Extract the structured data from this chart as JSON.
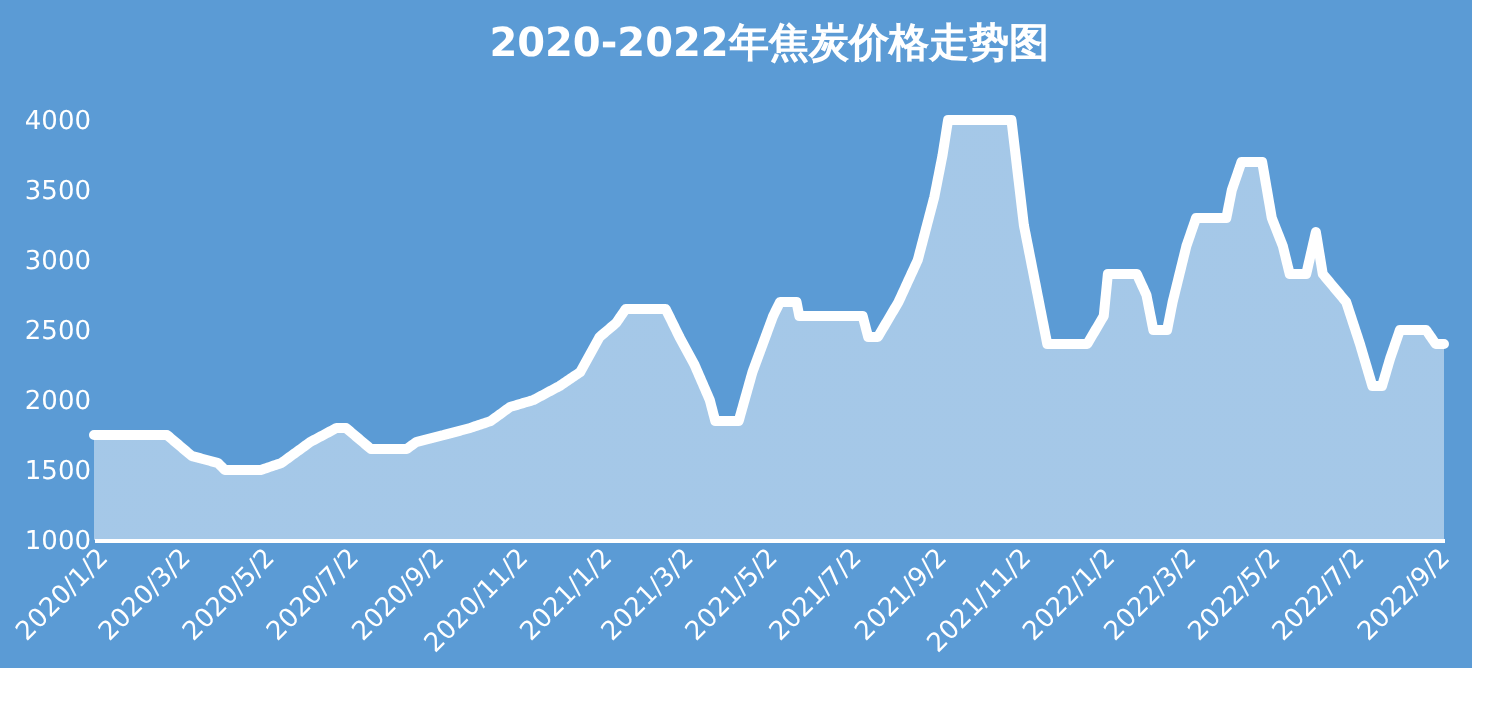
{
  "chart_data": {
    "type": "area",
    "title": "2020-2022年焦炭价格走势图",
    "x": [
      "2020-01-02",
      "2020-02-24",
      "2020-03-13",
      "2020-04-01",
      "2020-04-06",
      "2020-05-02",
      "2020-05-17",
      "2020-06-07",
      "2020-06-26",
      "2020-07-03",
      "2020-07-21",
      "2020-08-16",
      "2020-08-23",
      "2020-09-12",
      "2020-10-01",
      "2020-10-16",
      "2020-10-30",
      "2020-11-16",
      "2020-12-05",
      "2020-12-20",
      "2021-01-03",
      "2021-01-15",
      "2021-01-22",
      "2021-02-20",
      "2021-03-02",
      "2021-03-13",
      "2021-03-24",
      "2021-03-28",
      "2021-04-14",
      "2021-04-24",
      "2021-05-09",
      "2021-05-14",
      "2021-05-26",
      "2021-05-28",
      "2021-07-13",
      "2021-07-17",
      "2021-07-24",
      "2021-08-08",
      "2021-08-22",
      "2021-09-03",
      "2021-09-09",
      "2021-09-13",
      "2021-10-29",
      "2021-11-07",
      "2021-11-24",
      "2021-12-23",
      "2022-01-04",
      "2022-01-07",
      "2022-01-28",
      "2022-02-04",
      "2022-02-09",
      "2022-02-19",
      "2022-02-23",
      "2022-03-05",
      "2022-03-12",
      "2022-04-03",
      "2022-04-07",
      "2022-04-14",
      "2022-04-29",
      "2022-05-06",
      "2022-05-14",
      "2022-05-19",
      "2022-05-31",
      "2022-06-07",
      "2022-06-12",
      "2022-06-29",
      "2022-07-09",
      "2022-07-18",
      "2022-07-25",
      "2022-07-31",
      "2022-08-07",
      "2022-08-26",
      "2022-09-02",
      "2022-09-08"
    ],
    "series": [
      {
        "color": "#ffffff",
        "values": [
          1750,
          1750,
          1600,
          1550,
          1500,
          1500,
          1550,
          1700,
          1800,
          1800,
          1650,
          1650,
          1700,
          1750,
          1800,
          1850,
          1950,
          2000,
          2100,
          2200,
          2450,
          2550,
          2650,
          2650,
          2450,
          2250,
          2000,
          1850,
          1850,
          2200,
          2600,
          2700,
          2700,
          2600,
          2600,
          2450,
          2450,
          2700,
          3000,
          3450,
          3750,
          4000,
          4000,
          3250,
          2400,
          2400,
          2600,
          2900,
          2900,
          2750,
          2500,
          2500,
          2700,
          3100,
          3300,
          3300,
          3500,
          3700,
          3700,
          3300,
          3100,
          2900,
          2900,
          3200,
          2900,
          2700,
          2400,
          2100,
          2100,
          2300,
          2500,
          2500,
          2400,
          2400
        ]
      }
    ],
    "xlim": [
      "2020-01-02",
      "2022-09-08"
    ],
    "xticks": [
      {
        "value": "2020-01-02",
        "label": "2020/1/2"
      },
      {
        "value": "2020-03-02",
        "label": "2020/3/2"
      },
      {
        "value": "2020-05-02",
        "label": "2020/5/2"
      },
      {
        "value": "2020-07-02",
        "label": "2020/7/2"
      },
      {
        "value": "2020-09-02",
        "label": "2020/9/2"
      },
      {
        "value": "2020-11-02",
        "label": "2020/11/2"
      },
      {
        "value": "2021-01-02",
        "label": "2021/1/2"
      },
      {
        "value": "2021-03-02",
        "label": "2021/3/2"
      },
      {
        "value": "2021-05-02",
        "label": "2021/5/2"
      },
      {
        "value": "2021-07-02",
        "label": "2021/7/2"
      },
      {
        "value": "2021-09-02",
        "label": "2021/9/2"
      },
      {
        "value": "2021-11-02",
        "label": "2021/11/2"
      },
      {
        "value": "2022-01-02",
        "label": "2022/1/2"
      },
      {
        "value": "2022-03-02",
        "label": "2022/3/2"
      },
      {
        "value": "2022-05-02",
        "label": "2022/5/2"
      },
      {
        "value": "2022-07-02",
        "label": "2022/7/2"
      },
      {
        "value": "2022-09-02",
        "label": "2022/9/2"
      }
    ],
    "ylim": [
      1000,
      4000
    ],
    "yticks": [
      1000,
      1500,
      2000,
      2500,
      3000,
      3500,
      4000
    ],
    "grid": false,
    "line_style": "solid",
    "marker": "none"
  }
}
